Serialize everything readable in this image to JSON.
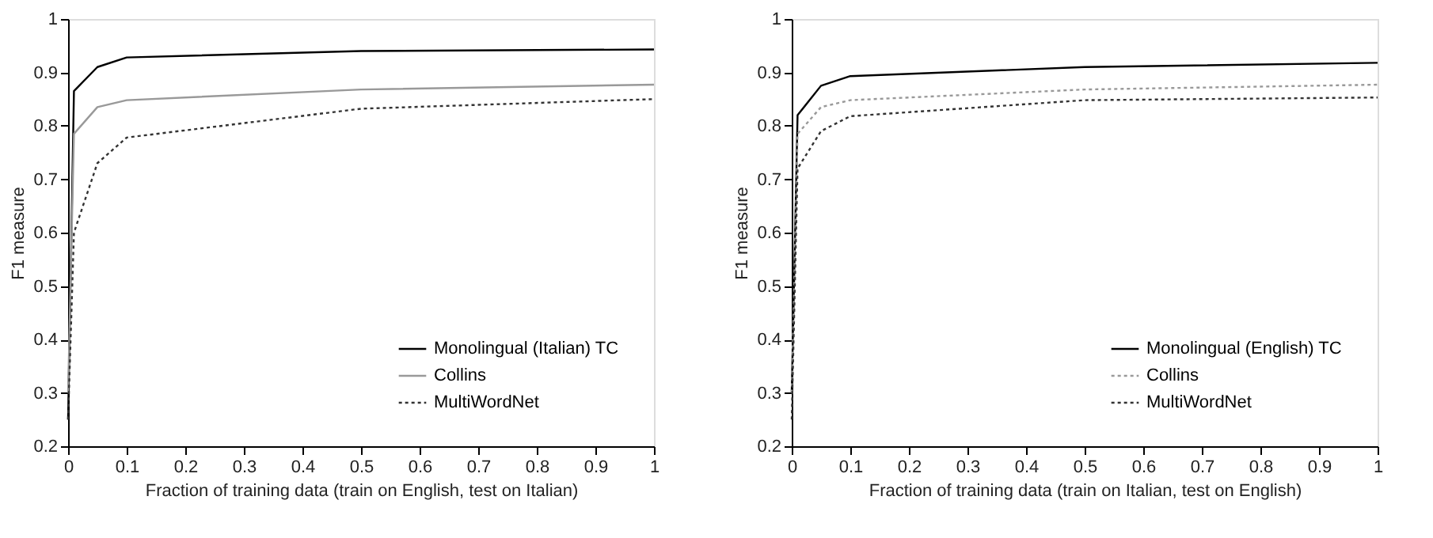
{
  "chart_data": [
    {
      "type": "line",
      "xlabel": "Fraction of training data (train on English, test on Italian)",
      "ylabel": "F1 measure",
      "x": [
        0,
        0.01,
        0.05,
        0.1,
        0.5,
        1
      ],
      "xlim": [
        0,
        1
      ],
      "ylim": [
        0.2,
        1
      ],
      "xticks": [
        0,
        0.1,
        0.2,
        0.3,
        0.4,
        0.5,
        0.6,
        0.7,
        0.8,
        0.9,
        1
      ],
      "yticks": [
        0.2,
        0.3,
        0.4,
        0.5,
        0.6,
        0.7,
        0.8,
        0.9,
        1
      ],
      "grid": false,
      "legend": "bottom right",
      "marker": "none",
      "series": [
        {
          "name": "Monolingual (Italian) TC",
          "color": "#000000",
          "line_style": "solid",
          "values": [
            0.25,
            0.865,
            0.91,
            0.928,
            0.94,
            0.943
          ]
        },
        {
          "name": "Collins",
          "color": "#999999",
          "line_style": "solid",
          "values": [
            0.3,
            0.785,
            0.835,
            0.848,
            0.868,
            0.877
          ]
        },
        {
          "name": "MultiWordNet",
          "color": "#333333",
          "line_style": "dotted",
          "values": [
            0.25,
            0.6,
            0.73,
            0.778,
            0.832,
            0.85
          ]
        }
      ]
    },
    {
      "type": "line",
      "xlabel": "Fraction of training data (train on Italian, test on English)",
      "ylabel": "F1 measure",
      "x": [
        0,
        0.01,
        0.05,
        0.1,
        0.5,
        1
      ],
      "xlim": [
        0,
        1
      ],
      "ylim": [
        0.2,
        1
      ],
      "xticks": [
        0,
        0.1,
        0.2,
        0.3,
        0.4,
        0.5,
        0.6,
        0.7,
        0.8,
        0.9,
        1
      ],
      "yticks": [
        0.2,
        0.3,
        0.4,
        0.5,
        0.6,
        0.7,
        0.8,
        0.9,
        1
      ],
      "grid": false,
      "legend": "bottom right",
      "marker": "none",
      "series": [
        {
          "name": "Monolingual (English) TC",
          "color": "#000000",
          "line_style": "solid",
          "values": [
            0.3,
            0.82,
            0.875,
            0.893,
            0.91,
            0.918
          ]
        },
        {
          "name": "Collins",
          "color": "#999999",
          "line_style": "dotted",
          "values": [
            0.3,
            0.785,
            0.835,
            0.848,
            0.868,
            0.877
          ]
        },
        {
          "name": "MultiWordNet",
          "color": "#333333",
          "line_style": "dotted",
          "values": [
            0.25,
            0.72,
            0.79,
            0.818,
            0.848,
            0.853
          ]
        }
      ]
    }
  ]
}
